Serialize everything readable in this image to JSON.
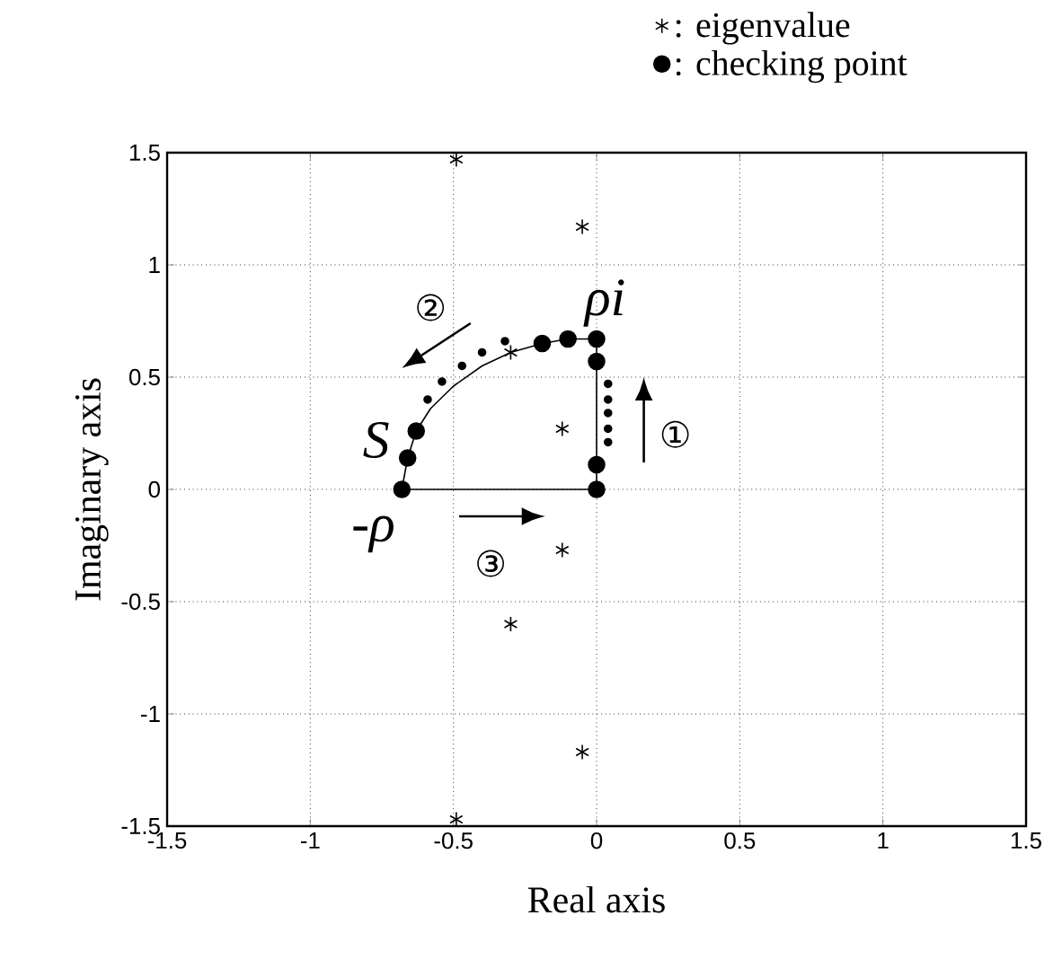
{
  "chart_data": {
    "type": "scatter",
    "xlabel": "Real axis",
    "ylabel": "Imaginary axis",
    "xlim": [
      -1.5,
      1.5
    ],
    "ylim": [
      -1.5,
      1.5
    ],
    "xticks": [
      -1.5,
      -1,
      -0.5,
      0,
      0.5,
      1,
      1.5
    ],
    "yticks": [
      -1.5,
      -1,
      -0.5,
      0,
      0.5,
      1,
      1.5
    ],
    "grid": true,
    "legend": "top right",
    "series": [
      {
        "name": ": eigenvalue",
        "marker": "cross",
        "color": "#000000",
        "x": [
          -0.49,
          -0.05,
          -0.3,
          -0.12,
          -0.12,
          -0.3,
          -0.05,
          -0.49
        ],
        "values": [
          1.47,
          1.17,
          0.61,
          0.27,
          -0.27,
          -0.6,
          -1.17,
          -1.47
        ]
      },
      {
        "name": ": checking point",
        "marker": "circle",
        "color": "#000000",
        "x": [
          -0.68,
          -0.66,
          -0.63,
          -0.19,
          -0.1,
          0,
          0,
          0,
          0
        ],
        "values": [
          0,
          0.14,
          0.26,
          0.65,
          0.67,
          0.67,
          0.57,
          0.11,
          0
        ]
      },
      {
        "marker": "circle",
        "color": "#000000",
        "x": [
          -0.59,
          -0.54,
          -0.47,
          -0.4,
          -0.32,
          0.04,
          0.04,
          0.04,
          0.04,
          0.04
        ],
        "values": [
          0.4,
          0.48,
          0.55,
          0.61,
          0.66,
          0.47,
          0.4,
          0.34,
          0.27,
          0.21
        ]
      },
      {
        "type": "line",
        "marker": "none",
        "color": "#000000",
        "x": [
          0,
          -0.1,
          -0.19,
          -0.3,
          -0.4,
          -0.5,
          -0.58,
          -0.63,
          -0.66,
          -0.68
        ],
        "values": [
          0.67,
          0.67,
          0.65,
          0.61,
          0.55,
          0.46,
          0.36,
          0.26,
          0.14,
          0
        ]
      },
      {
        "type": "line",
        "marker": "none",
        "color": "#000000",
        "x": [
          -0.68,
          0,
          0
        ],
        "values": [
          0,
          0,
          0.67
        ]
      }
    ],
    "annotations": [
      "①",
      "②",
      "③",
      "*S*",
      "-*ρ*",
      "*ρi*"
    ]
  }
}
